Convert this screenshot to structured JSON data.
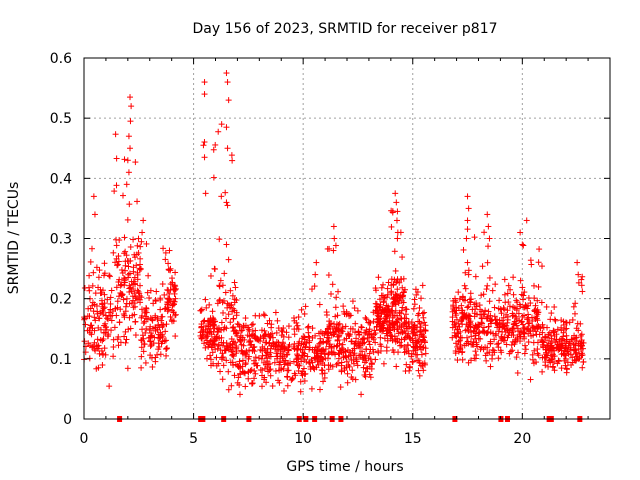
{
  "chart_data": {
    "type": "scatter",
    "title": "Day 156 of 2023, SRMTID for receiver p817",
    "xlabel": "GPS time / hours",
    "ylabel": "SRMTID / TECUs",
    "xlim": [
      0,
      24
    ],
    "ylim": [
      0,
      0.6
    ],
    "xticks": [
      0,
      5,
      10,
      15,
      20
    ],
    "yticks": [
      0,
      0.1,
      0.2,
      0.3,
      0.4,
      0.5,
      0.6
    ],
    "xtick_labels": [
      "0",
      "5",
      "10",
      "15",
      "20"
    ],
    "ytick_labels": [
      "0",
      "0.1",
      "0.2",
      "0.3",
      "0.4",
      "0.5",
      "0.6"
    ],
    "grid": true,
    "marker": "+",
    "series_color": "#ff0000",
    "clusters": [
      {
        "x_start": 0.0,
        "x_end": 1.3,
        "y_min": 0.04,
        "y_max": 0.37,
        "median": 0.16,
        "count": 120,
        "spikes": [
          [
            0.45,
            0.37
          ],
          [
            0.5,
            0.34
          ]
        ]
      },
      {
        "x_start": 1.3,
        "x_end": 2.6,
        "y_min": 0.08,
        "y_max": 0.54,
        "median": 0.22,
        "count": 140,
        "spikes": [
          [
            2.1,
            0.535
          ],
          [
            2.15,
            0.52
          ],
          [
            2.12,
            0.495
          ],
          [
            2.05,
            0.47
          ],
          [
            2.1,
            0.45
          ],
          [
            2.0,
            0.43
          ],
          [
            2.05,
            0.41
          ],
          [
            1.95,
            0.39
          ]
        ]
      },
      {
        "x_start": 2.6,
        "x_end": 3.8,
        "y_min": 0.06,
        "y_max": 0.33,
        "median": 0.15,
        "count": 110,
        "spikes": [
          [
            2.7,
            0.33
          ],
          [
            2.65,
            0.31
          ]
        ]
      },
      {
        "x_start": 3.8,
        "x_end": 4.2,
        "y_min": 0.08,
        "y_max": 0.28,
        "median": 0.2,
        "count": 50,
        "spikes": [
          [
            3.9,
            0.28
          ]
        ]
      },
      {
        "x_start": 5.3,
        "x_end": 6.0,
        "y_min": 0.07,
        "y_max": 0.56,
        "median": 0.14,
        "count": 90,
        "spikes": [
          [
            5.5,
            0.56
          ],
          [
            5.5,
            0.54
          ],
          [
            5.45,
            0.455
          ],
          [
            5.5,
            0.435
          ],
          [
            5.55,
            0.375
          ]
        ]
      },
      {
        "x_start": 6.0,
        "x_end": 7.0,
        "y_min": 0.02,
        "y_max": 0.58,
        "median": 0.14,
        "count": 120,
        "spikes": [
          [
            6.5,
            0.575
          ],
          [
            6.55,
            0.56
          ],
          [
            6.6,
            0.53
          ],
          [
            6.5,
            0.485
          ],
          [
            6.55,
            0.45
          ],
          [
            6.5,
            0.36
          ],
          [
            6.55,
            0.355
          ],
          [
            6.5,
            0.29
          ]
        ]
      },
      {
        "x_start": 7.0,
        "x_end": 9.9,
        "y_min": 0.03,
        "y_max": 0.19,
        "median": 0.11,
        "count": 280,
        "spikes": []
      },
      {
        "x_start": 9.9,
        "x_end": 11.0,
        "y_min": 0.04,
        "y_max": 0.26,
        "median": 0.11,
        "count": 110,
        "spikes": [
          [
            10.6,
            0.26
          ],
          [
            10.55,
            0.24
          ]
        ]
      },
      {
        "x_start": 11.0,
        "x_end": 11.6,
        "y_min": 0.06,
        "y_max": 0.32,
        "median": 0.14,
        "count": 70,
        "spikes": [
          [
            11.4,
            0.32
          ],
          [
            11.42,
            0.3
          ],
          [
            11.38,
            0.28
          ]
        ]
      },
      {
        "x_start": 11.6,
        "x_end": 13.3,
        "y_min": 0.04,
        "y_max": 0.22,
        "median": 0.12,
        "count": 170,
        "spikes": []
      },
      {
        "x_start": 13.3,
        "x_end": 14.0,
        "y_min": 0.08,
        "y_max": 0.25,
        "median": 0.16,
        "count": 110,
        "spikes": []
      },
      {
        "x_start": 14.0,
        "x_end": 14.6,
        "y_min": 0.08,
        "y_max": 0.38,
        "median": 0.18,
        "count": 110,
        "spikes": [
          [
            14.2,
            0.375
          ],
          [
            14.25,
            0.36
          ],
          [
            14.3,
            0.345
          ],
          [
            14.28,
            0.33
          ],
          [
            14.32,
            0.31
          ],
          [
            14.3,
            0.3
          ]
        ]
      },
      {
        "x_start": 14.6,
        "x_end": 15.6,
        "y_min": 0.05,
        "y_max": 0.24,
        "median": 0.13,
        "count": 130,
        "spikes": []
      },
      {
        "x_start": 16.8,
        "x_end": 17.8,
        "y_min": 0.07,
        "y_max": 0.37,
        "median": 0.16,
        "count": 120,
        "spikes": [
          [
            17.5,
            0.37
          ],
          [
            17.55,
            0.35
          ],
          [
            17.5,
            0.33
          ],
          [
            17.45,
            0.3
          ],
          [
            17.5,
            0.26
          ],
          [
            17.55,
            0.24
          ]
        ]
      },
      {
        "x_start": 17.8,
        "x_end": 19.3,
        "y_min": 0.07,
        "y_max": 0.34,
        "median": 0.15,
        "count": 150,
        "spikes": [
          [
            18.4,
            0.34
          ],
          [
            18.45,
            0.32
          ],
          [
            18.5,
            0.3
          ]
        ]
      },
      {
        "x_start": 19.3,
        "x_end": 20.9,
        "y_min": 0.06,
        "y_max": 0.33,
        "median": 0.16,
        "count": 160,
        "spikes": [
          [
            20.2,
            0.33
          ],
          [
            19.9,
            0.31
          ],
          [
            20.0,
            0.29
          ]
        ]
      },
      {
        "x_start": 20.9,
        "x_end": 22.0,
        "y_min": 0.06,
        "y_max": 0.2,
        "median": 0.12,
        "count": 120,
        "spikes": []
      },
      {
        "x_start": 22.0,
        "x_end": 22.8,
        "y_min": 0.06,
        "y_max": 0.26,
        "median": 0.12,
        "count": 80,
        "spikes": [
          [
            22.5,
            0.26
          ],
          [
            22.55,
            0.24
          ]
        ]
      }
    ],
    "zero_markers_x": [
      1.6,
      5.3,
      5.4,
      6.35,
      7.5,
      9.8,
      10.1,
      10.5,
      11.3,
      11.7,
      16.9,
      19.0,
      19.3,
      21.2,
      21.3,
      22.6
    ]
  }
}
